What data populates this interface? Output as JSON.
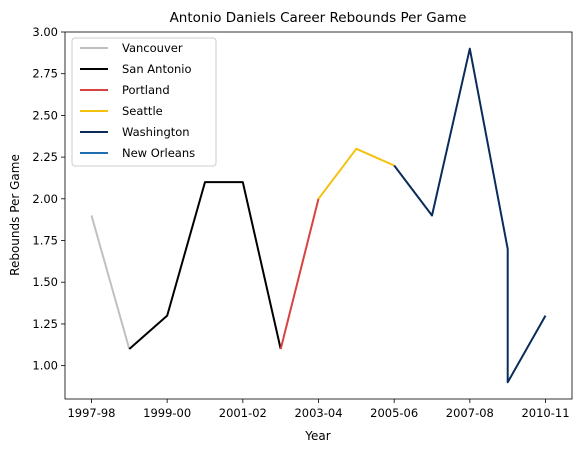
{
  "chart_data": {
    "type": "line",
    "title": "Antonio Daniels Career Rebounds Per Game",
    "xlabel": "Year",
    "ylabel": "Rebounds Per Game",
    "x_ticks": [
      "1997-98",
      "1999-00",
      "2001-02",
      "2003-04",
      "2005-06",
      "2007-08",
      "2010-11"
    ],
    "x_tick_positions": [
      0,
      2,
      4,
      6,
      8,
      10,
      12
    ],
    "xlim": [
      -0.7,
      12.7
    ],
    "ylim": [
      0.8,
      3.0
    ],
    "y_ticks": [
      1.0,
      1.25,
      1.5,
      1.75,
      2.0,
      2.25,
      2.5,
      2.75,
      3.0
    ],
    "y_tick_labels": [
      "1.00",
      "1.25",
      "1.50",
      "1.75",
      "2.00",
      "2.25",
      "2.50",
      "2.75",
      "3.00"
    ],
    "legend_position": "top-left",
    "grid": false,
    "series": [
      {
        "name": "Vancouver",
        "color": "#c0c0c0",
        "x": [
          0,
          1
        ],
        "y": [
          1.9,
          1.1
        ]
      },
      {
        "name": "San Antonio",
        "color": "#000000",
        "x": [
          1,
          2,
          3,
          4,
          5
        ],
        "y": [
          1.1,
          1.3,
          2.1,
          2.1,
          1.1
        ]
      },
      {
        "name": "Portland",
        "color": "#d9423f",
        "x": [
          5,
          6
        ],
        "y": [
          1.1,
          2.0
        ]
      },
      {
        "name": "Seattle",
        "color": "#f5c10f",
        "x": [
          6,
          7,
          8
        ],
        "y": [
          2.0,
          2.3,
          2.2
        ]
      },
      {
        "name": "Washington",
        "color": "#0b2c5b",
        "x": [
          8,
          9,
          10,
          11,
          11,
          12
        ],
        "y": [
          2.2,
          1.9,
          2.9,
          1.7,
          0.9,
          1.3
        ]
      },
      {
        "name": "New Orleans",
        "color": "#1f6fb0",
        "x": [],
        "y": []
      }
    ]
  }
}
